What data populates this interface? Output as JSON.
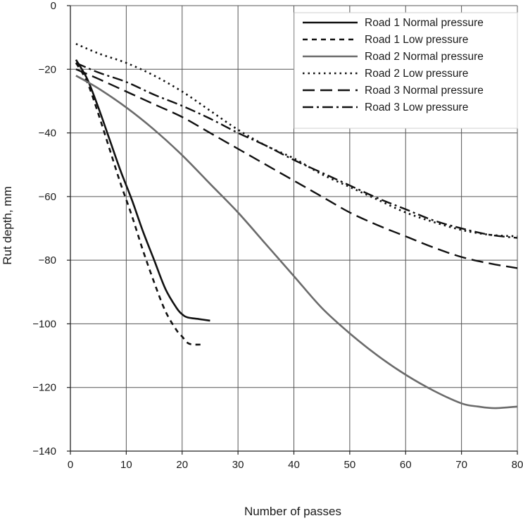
{
  "chart_data": {
    "type": "line",
    "title": "",
    "xlabel": "Number of passes",
    "ylabel": "Rut depth, mm",
    "xlim": [
      0,
      80
    ],
    "ylim": [
      -140,
      0
    ],
    "xticks": [
      0,
      10,
      20,
      30,
      40,
      50,
      60,
      70,
      80
    ],
    "yticks": [
      0,
      -20,
      -40,
      -60,
      -80,
      -100,
      -120,
      -140
    ],
    "xtick_labels": [
      "0",
      "10",
      "20",
      "30",
      "40",
      "50",
      "60",
      "70",
      "80"
    ],
    "ytick_labels": [
      "0",
      "−20",
      "−40",
      "−60",
      "−80",
      "−100",
      "−120",
      "−140"
    ],
    "grid": true,
    "legend_position": "top-right",
    "series": [
      {
        "name": "Road 1 Normal pressure",
        "color": "#111111",
        "dash": "solid",
        "x": [
          1,
          3,
          5,
          7,
          9,
          11,
          13,
          15,
          17,
          19,
          20,
          21,
          23,
          25
        ],
        "y": [
          -17,
          -23,
          -32,
          -42,
          -52,
          -61,
          -71,
          -80,
          -89,
          -95,
          -97,
          -98,
          -98.5,
          -99
        ]
      },
      {
        "name": "Road 1 Low pressure",
        "color": "#111111",
        "dash": "dash",
        "x": [
          1,
          3,
          5,
          7,
          9,
          11,
          13,
          15,
          17,
          19,
          20,
          21,
          22,
          24
        ],
        "y": [
          -18,
          -24,
          -34,
          -45,
          -56,
          -66,
          -77,
          -87,
          -96,
          -102,
          -104,
          -106,
          -106.5,
          -106.5
        ]
      },
      {
        "name": "Road 2 Normal pressure",
        "color": "#6b6b6b",
        "dash": "solid",
        "x": [
          1,
          5,
          10,
          15,
          20,
          25,
          30,
          35,
          40,
          45,
          50,
          55,
          60,
          65,
          70,
          73,
          76,
          80
        ],
        "y": [
          -22,
          -26,
          -32,
          -39,
          -47,
          -56,
          -65,
          -75,
          -85,
          -95,
          -103,
          -110,
          -116,
          -121,
          -125,
          -126,
          -126.5,
          -126
        ]
      },
      {
        "name": "Road 2 Low pressure",
        "color": "#111111",
        "dash": "dot",
        "x": [
          1,
          5,
          10,
          15,
          20,
          25,
          30,
          35,
          40,
          45,
          50,
          55,
          60,
          65,
          70,
          75,
          80
        ],
        "y": [
          -12,
          -15,
          -18,
          -22,
          -27,
          -33,
          -39,
          -44,
          -48,
          -53,
          -57,
          -61,
          -65,
          -68,
          -70.5,
          -72,
          -72.5
        ]
      },
      {
        "name": "Road 3 Normal pressure",
        "color": "#111111",
        "dash": "longdash",
        "x": [
          1,
          5,
          10,
          15,
          20,
          25,
          30,
          35,
          40,
          45,
          50,
          55,
          60,
          65,
          70,
          75,
          80
        ],
        "y": [
          -20,
          -23,
          -27,
          -31,
          -35,
          -40,
          -45,
          -50,
          -55,
          -60,
          -65,
          -69,
          -72.5,
          -76,
          -79,
          -81,
          -82.5
        ]
      },
      {
        "name": "Road 3 Low pressure",
        "color": "#111111",
        "dash": "dashdot",
        "x": [
          1,
          5,
          10,
          15,
          20,
          25,
          30,
          35,
          40,
          45,
          50,
          55,
          60,
          65,
          70,
          75,
          80
        ],
        "y": [
          -18,
          -21,
          -24,
          -28,
          -31.5,
          -35.5,
          -40,
          -44,
          -48.5,
          -52.5,
          -56.5,
          -60.5,
          -64,
          -67.5,
          -70,
          -72,
          -73
        ]
      }
    ]
  }
}
